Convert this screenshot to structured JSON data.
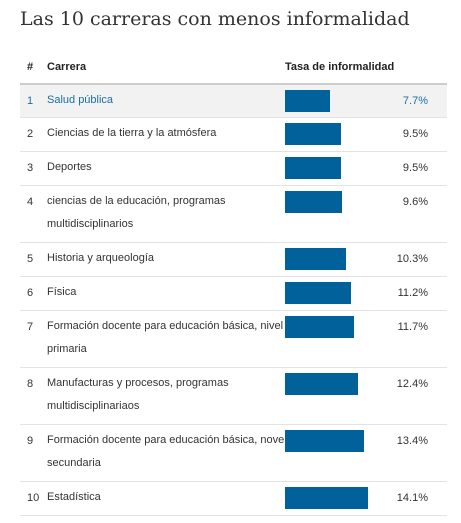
{
  "title": "Las 10 carreras con menos informalidad",
  "headers": {
    "rank": "#",
    "career": "Carrera",
    "rate": "Tasa de informalidad"
  },
  "colors": {
    "bar": "#00619b",
    "highlight_text": "#1a6fa3",
    "highlight_bg": "#f2f2f2"
  },
  "chart_data": {
    "type": "bar",
    "orientation": "horizontal",
    "title": "Las 10 carreras con menos informalidad",
    "value_unit": "%",
    "highlighted_rank": 1,
    "rows": [
      {
        "rank": "1",
        "career": "Salud pública",
        "value": 7.7,
        "label": "7.7%"
      },
      {
        "rank": "2",
        "career": "Ciencias de la tierra y la atmósfera",
        "value": 9.5,
        "label": "9.5%"
      },
      {
        "rank": "3",
        "career": "Deportes",
        "value": 9.5,
        "label": "9.5%"
      },
      {
        "rank": "4",
        "career": "ciencias de la educación, programas multidisciplinarios",
        "value": 9.6,
        "label": "9.6%"
      },
      {
        "rank": "5",
        "career": "Historia y arqueología",
        "value": 10.3,
        "label": "10.3%"
      },
      {
        "rank": "6",
        "career": "Física",
        "value": 11.2,
        "label": "11.2%"
      },
      {
        "rank": "7",
        "career": "Formación docente para educación básica, nivel primaria",
        "value": 11.7,
        "label": "11.7%"
      },
      {
        "rank": "8",
        "career": "Manufacturas y procesos, programas multidisciplinariaos",
        "value": 12.4,
        "label": "12.4%"
      },
      {
        "rank": "9",
        "career": "Formación docente para educación básica, novel secundaria",
        "value": 13.4,
        "label": "13.4%"
      },
      {
        "rank": "10",
        "career": "Estadística",
        "value": 14.1,
        "label": "14.1%"
      }
    ]
  }
}
